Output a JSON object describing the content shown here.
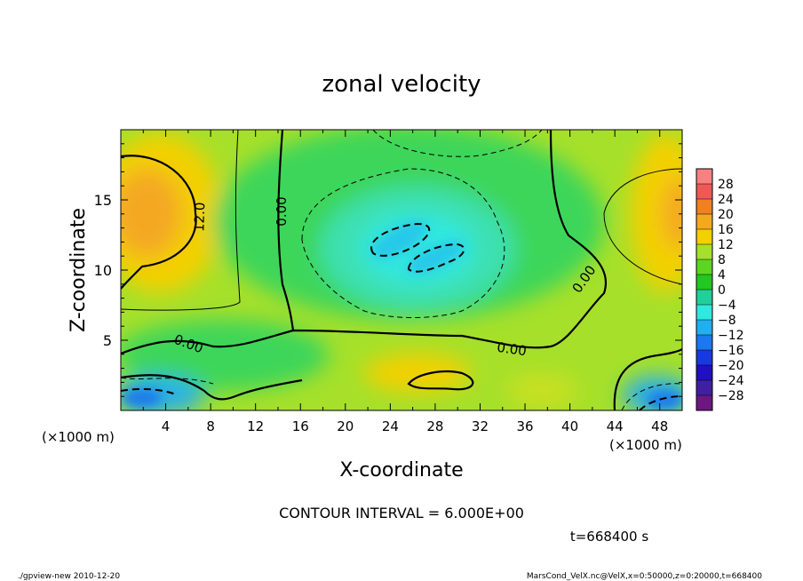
{
  "chart_data": {
    "type": "heatmap",
    "title": "zonal velocity",
    "xlabel": "X-coordinate",
    "ylabel": "Z-coordinate",
    "x_unit": "(×1000 m)",
    "x_unit_right": "(×1000 m)",
    "x_ticks": [
      "4",
      "8",
      "12",
      "16",
      "20",
      "24",
      "28",
      "32",
      "36",
      "40",
      "44",
      "48"
    ],
    "y_ticks": [
      "5",
      "10",
      "15"
    ],
    "xlim": [
      0,
      50
    ],
    "ylim": [
      0,
      20
    ],
    "colorbar": {
      "labels": [
        "28",
        "24",
        "20",
        "16",
        "12",
        "8",
        "4",
        "0",
        "−4",
        "−8",
        "−12",
        "−16",
        "−20",
        "−24",
        "−28"
      ],
      "range": [
        -30,
        30
      ]
    },
    "contour_labels": [
      "12.0",
      "0.00",
      "0.00",
      "0.00",
      "0.00"
    ],
    "contour_interval": "CONTOUR INTERVAL = 6.000E+00",
    "time": "t=668400 s"
  },
  "footer": {
    "left": "./gpview-new  2010-12-20",
    "right": "MarsCond_VelX.nc@VelX,x=0:50000,z=0:20000,t=668400"
  }
}
